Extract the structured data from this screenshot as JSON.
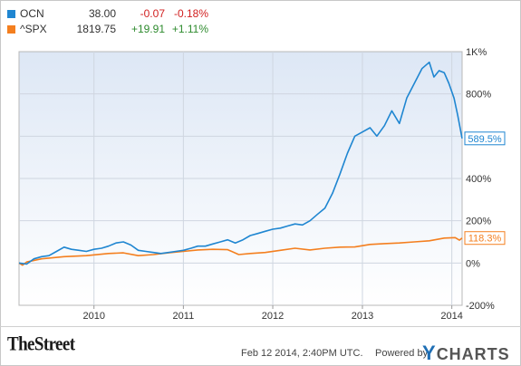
{
  "legend": [
    {
      "symbol": "OCN",
      "price": "38.00",
      "change": "-0.07",
      "pct": "-0.18%",
      "color": "#1f86d1",
      "change_color": "#d11f1f"
    },
    {
      "symbol": "^SPX",
      "price": "1819.75",
      "change": "+19.91",
      "pct": "+1.11%",
      "color": "#f47f1f",
      "change_color": "#2e8b2e"
    }
  ],
  "chart_data": {
    "type": "line",
    "x_ticks": [
      "2010",
      "2011",
      "2012",
      "2013",
      "2014"
    ],
    "y_ticks": [
      "1K%",
      "800%",
      "600%",
      "400%",
      "200%",
      "0%",
      "-200%"
    ],
    "ylim": [
      -200,
      1000
    ],
    "xlim": [
      "2009-03-01",
      "2014-02-12"
    ],
    "series": [
      {
        "name": "OCN",
        "color": "#1f86d1",
        "end_label": "589.5%",
        "points": [
          [
            "2009-03-01",
            0
          ],
          [
            "2009-04-01",
            -5
          ],
          [
            "2009-05-01",
            20
          ],
          [
            "2009-06-01",
            30
          ],
          [
            "2009-07-01",
            35
          ],
          [
            "2009-08-01",
            55
          ],
          [
            "2009-09-01",
            75
          ],
          [
            "2009-10-01",
            65
          ],
          [
            "2009-11-01",
            60
          ],
          [
            "2009-12-01",
            55
          ],
          [
            "2010-01-01",
            65
          ],
          [
            "2010-02-01",
            70
          ],
          [
            "2010-03-01",
            80
          ],
          [
            "2010-04-01",
            95
          ],
          [
            "2010-05-01",
            100
          ],
          [
            "2010-06-01",
            85
          ],
          [
            "2010-07-01",
            60
          ],
          [
            "2010-08-01",
            55
          ],
          [
            "2010-09-01",
            50
          ],
          [
            "2010-10-01",
            45
          ],
          [
            "2010-11-01",
            50
          ],
          [
            "2010-12-01",
            55
          ],
          [
            "2011-01-01",
            60
          ],
          [
            "2011-02-01",
            70
          ],
          [
            "2011-03-01",
            80
          ],
          [
            "2011-04-01",
            80
          ],
          [
            "2011-05-01",
            90
          ],
          [
            "2011-06-01",
            100
          ],
          [
            "2011-07-01",
            110
          ],
          [
            "2011-08-01",
            95
          ],
          [
            "2011-09-01",
            110
          ],
          [
            "2011-10-01",
            130
          ],
          [
            "2011-11-01",
            140
          ],
          [
            "2011-12-01",
            150
          ],
          [
            "2012-01-01",
            160
          ],
          [
            "2012-02-01",
            165
          ],
          [
            "2012-03-01",
            175
          ],
          [
            "2012-04-01",
            185
          ],
          [
            "2012-05-01",
            180
          ],
          [
            "2012-06-01",
            200
          ],
          [
            "2012-07-01",
            230
          ],
          [
            "2012-08-01",
            260
          ],
          [
            "2012-09-01",
            330
          ],
          [
            "2012-10-01",
            420
          ],
          [
            "2012-11-01",
            520
          ],
          [
            "2012-12-01",
            600
          ],
          [
            "2013-01-01",
            620
          ],
          [
            "2013-02-01",
            640
          ],
          [
            "2013-03-01",
            600
          ],
          [
            "2013-04-01",
            650
          ],
          [
            "2013-05-01",
            720
          ],
          [
            "2013-06-01",
            660
          ],
          [
            "2013-07-01",
            780
          ],
          [
            "2013-08-01",
            850
          ],
          [
            "2013-09-01",
            920
          ],
          [
            "2013-10-01",
            950
          ],
          [
            "2013-10-20",
            880
          ],
          [
            "2013-11-10",
            910
          ],
          [
            "2013-12-01",
            900
          ],
          [
            "2013-12-20",
            850
          ],
          [
            "2014-01-10",
            780
          ],
          [
            "2014-01-25",
            700
          ],
          [
            "2014-02-12",
            589.5
          ]
        ]
      },
      {
        "name": "^SPX",
        "color": "#f47f1f",
        "end_label": "118.3%",
        "points": [
          [
            "2009-03-01",
            0
          ],
          [
            "2009-03-15",
            -10
          ],
          [
            "2009-04-01",
            5
          ],
          [
            "2009-06-01",
            20
          ],
          [
            "2009-09-01",
            30
          ],
          [
            "2009-12-01",
            35
          ],
          [
            "2010-03-01",
            45
          ],
          [
            "2010-05-01",
            48
          ],
          [
            "2010-07-01",
            35
          ],
          [
            "2010-09-01",
            40
          ],
          [
            "2010-11-01",
            48
          ],
          [
            "2011-01-01",
            55
          ],
          [
            "2011-03-01",
            62
          ],
          [
            "2011-05-01",
            65
          ],
          [
            "2011-07-01",
            63
          ],
          [
            "2011-08-15",
            40
          ],
          [
            "2011-10-01",
            45
          ],
          [
            "2011-12-01",
            50
          ],
          [
            "2012-02-01",
            60
          ],
          [
            "2012-04-01",
            70
          ],
          [
            "2012-06-01",
            62
          ],
          [
            "2012-08-01",
            70
          ],
          [
            "2012-10-01",
            75
          ],
          [
            "2012-12-01",
            76
          ],
          [
            "2013-02-01",
            88
          ],
          [
            "2013-04-01",
            92
          ],
          [
            "2013-06-01",
            95
          ],
          [
            "2013-08-01",
            100
          ],
          [
            "2013-10-01",
            105
          ],
          [
            "2013-12-01",
            118
          ],
          [
            "2014-01-15",
            120
          ],
          [
            "2014-02-01",
            108
          ],
          [
            "2014-02-12",
            118.3
          ]
        ]
      }
    ]
  },
  "footer": {
    "brand": "TheStreet",
    "timestamp": "Feb 12 2014, 2:40PM UTC.",
    "powered_by": "Powered by",
    "ycharts_y": "Y",
    "ycharts_rest": "CHARTS"
  }
}
